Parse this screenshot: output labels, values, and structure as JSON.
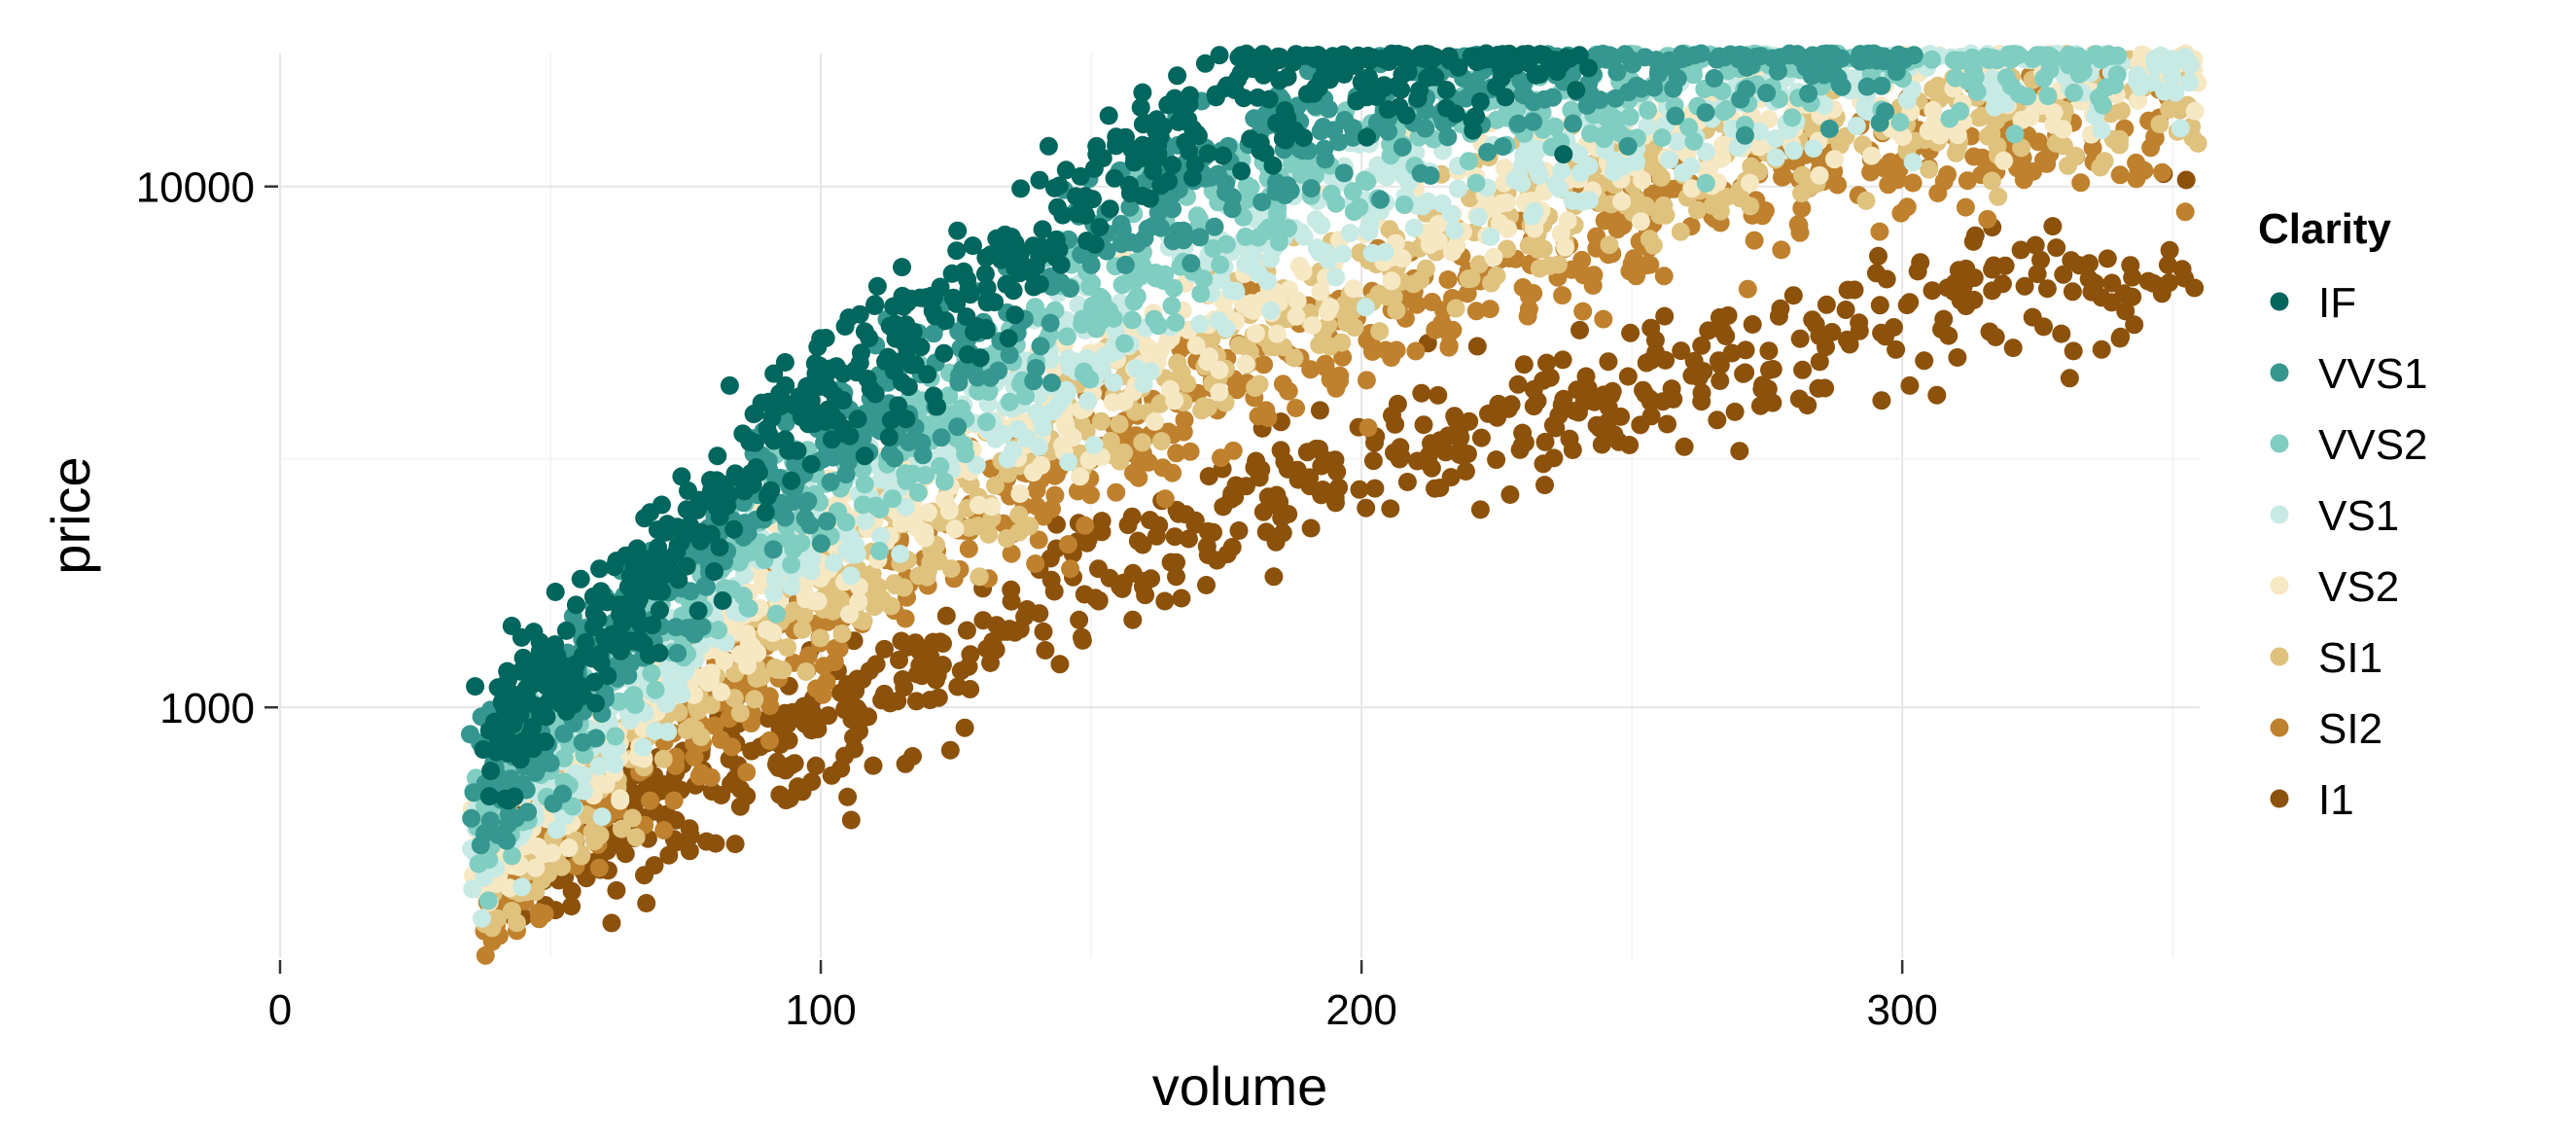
{
  "chart_data": {
    "type": "scatter",
    "title": "",
    "xlabel": "volume",
    "ylabel": "price",
    "xlim": [
      0,
      355
    ],
    "ylim": [
      330,
      18000
    ],
    "yscale": "log",
    "x_ticks": [
      0,
      100,
      200,
      300
    ],
    "y_ticks": [
      1000,
      10000
    ],
    "grid": true,
    "legend": {
      "title": "Clarity",
      "position": "right"
    },
    "series": [
      {
        "name": "IF",
        "color": "#01665e",
        "trend": [
          [
            40,
            900
          ],
          [
            60,
            1400
          ],
          [
            90,
            3200
          ],
          [
            120,
            5500
          ],
          [
            160,
            11500
          ],
          [
            180,
            15500
          ],
          [
            200,
            17500
          ],
          [
            240,
            18000
          ]
        ]
      },
      {
        "name": "VVS1",
        "color": "#35978f",
        "trend": [
          [
            38,
            700
          ],
          [
            60,
            1250
          ],
          [
            90,
            2600
          ],
          [
            120,
            4400
          ],
          [
            160,
            9500
          ],
          [
            200,
            14000
          ],
          [
            250,
            17500
          ],
          [
            300,
            18000
          ]
        ]
      },
      {
        "name": "VVS2",
        "color": "#80cdc1",
        "trend": [
          [
            38,
            620
          ],
          [
            60,
            1100
          ],
          [
            90,
            2200
          ],
          [
            130,
            4200
          ],
          [
            170,
            8500
          ],
          [
            220,
            13500
          ],
          [
            270,
            17000
          ],
          [
            340,
            18000
          ]
        ]
      },
      {
        "name": "VS1",
        "color": "#c7eae5",
        "trend": [
          [
            38,
            560
          ],
          [
            60,
            950
          ],
          [
            90,
            1900
          ],
          [
            130,
            3600
          ],
          [
            170,
            6800
          ],
          [
            220,
            11500
          ],
          [
            280,
            16000
          ],
          [
            355,
            18000
          ]
        ]
      },
      {
        "name": "VS2",
        "color": "#f6e8c3",
        "trend": [
          [
            38,
            520
          ],
          [
            60,
            850
          ],
          [
            90,
            1700
          ],
          [
            130,
            3200
          ],
          [
            180,
            6200
          ],
          [
            230,
            10000
          ],
          [
            290,
            15000
          ],
          [
            355,
            17500
          ]
        ]
      },
      {
        "name": "SI1",
        "color": "#dfc27d",
        "trend": [
          [
            38,
            480
          ],
          [
            60,
            760
          ],
          [
            90,
            1450
          ],
          [
            130,
            2700
          ],
          [
            180,
            5300
          ],
          [
            230,
            8800
          ],
          [
            290,
            13000
          ],
          [
            355,
            15500
          ]
        ]
      },
      {
        "name": "SI2",
        "color": "#bf812d",
        "trend": [
          [
            38,
            440
          ],
          [
            60,
            680
          ],
          [
            90,
            1250
          ],
          [
            130,
            2300
          ],
          [
            180,
            4500
          ],
          [
            230,
            7300
          ],
          [
            290,
            11000
          ],
          [
            355,
            13500
          ]
        ]
      },
      {
        "name": "I1",
        "color": "#8c510a",
        "trend": [
          [
            45,
            480
          ],
          [
            80,
            750
          ],
          [
            110,
            1000
          ],
          [
            150,
            1800
          ],
          [
            200,
            3000
          ],
          [
            250,
            4000
          ],
          [
            300,
            5500
          ],
          [
            355,
            7000
          ]
        ]
      }
    ]
  }
}
